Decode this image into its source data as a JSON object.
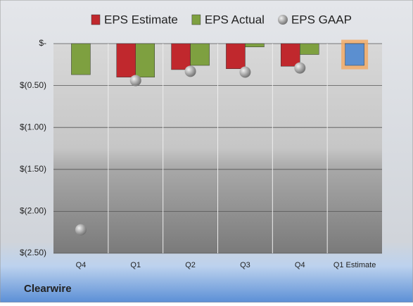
{
  "chart_data": {
    "type": "bar",
    "footer": "Clearwire",
    "categories": [
      "Q4",
      "Q1",
      "Q2",
      "Q3",
      "Q4",
      "Q1 Estimate"
    ],
    "series": [
      {
        "name": "EPS Estimate",
        "color": "#c0282d",
        "colors": [
          "#c0282d",
          "#c0282d",
          "#c0282d",
          "#c0282d",
          "#c0282d",
          "#5b8fd0"
        ],
        "values": [
          null,
          -0.4,
          -0.31,
          -0.3,
          -0.27,
          -0.26
        ]
      },
      {
        "name": "EPS Actual",
        "color": "#7ea040",
        "values": [
          -0.37,
          -0.4,
          -0.26,
          -0.04,
          -0.13,
          null
        ]
      },
      {
        "name": "EPS GAAP",
        "color": "#9a9a9a",
        "type": "scatter",
        "values": [
          -2.22,
          -0.44,
          -0.33,
          -0.34,
          -0.29,
          null
        ]
      }
    ],
    "ylim": [
      -2.5,
      0
    ],
    "yticks": [
      {
        "value": 0,
        "label": "$-"
      },
      {
        "value": -0.5,
        "label": "$(0.50)"
      },
      {
        "value": -1,
        "label": "$(1.00)"
      },
      {
        "value": -1.5,
        "label": "$(1.50)"
      },
      {
        "value": -2,
        "label": "$(2.00)"
      },
      {
        "value": -2.5,
        "label": "$(2.50)"
      }
    ],
    "grid": true
  }
}
